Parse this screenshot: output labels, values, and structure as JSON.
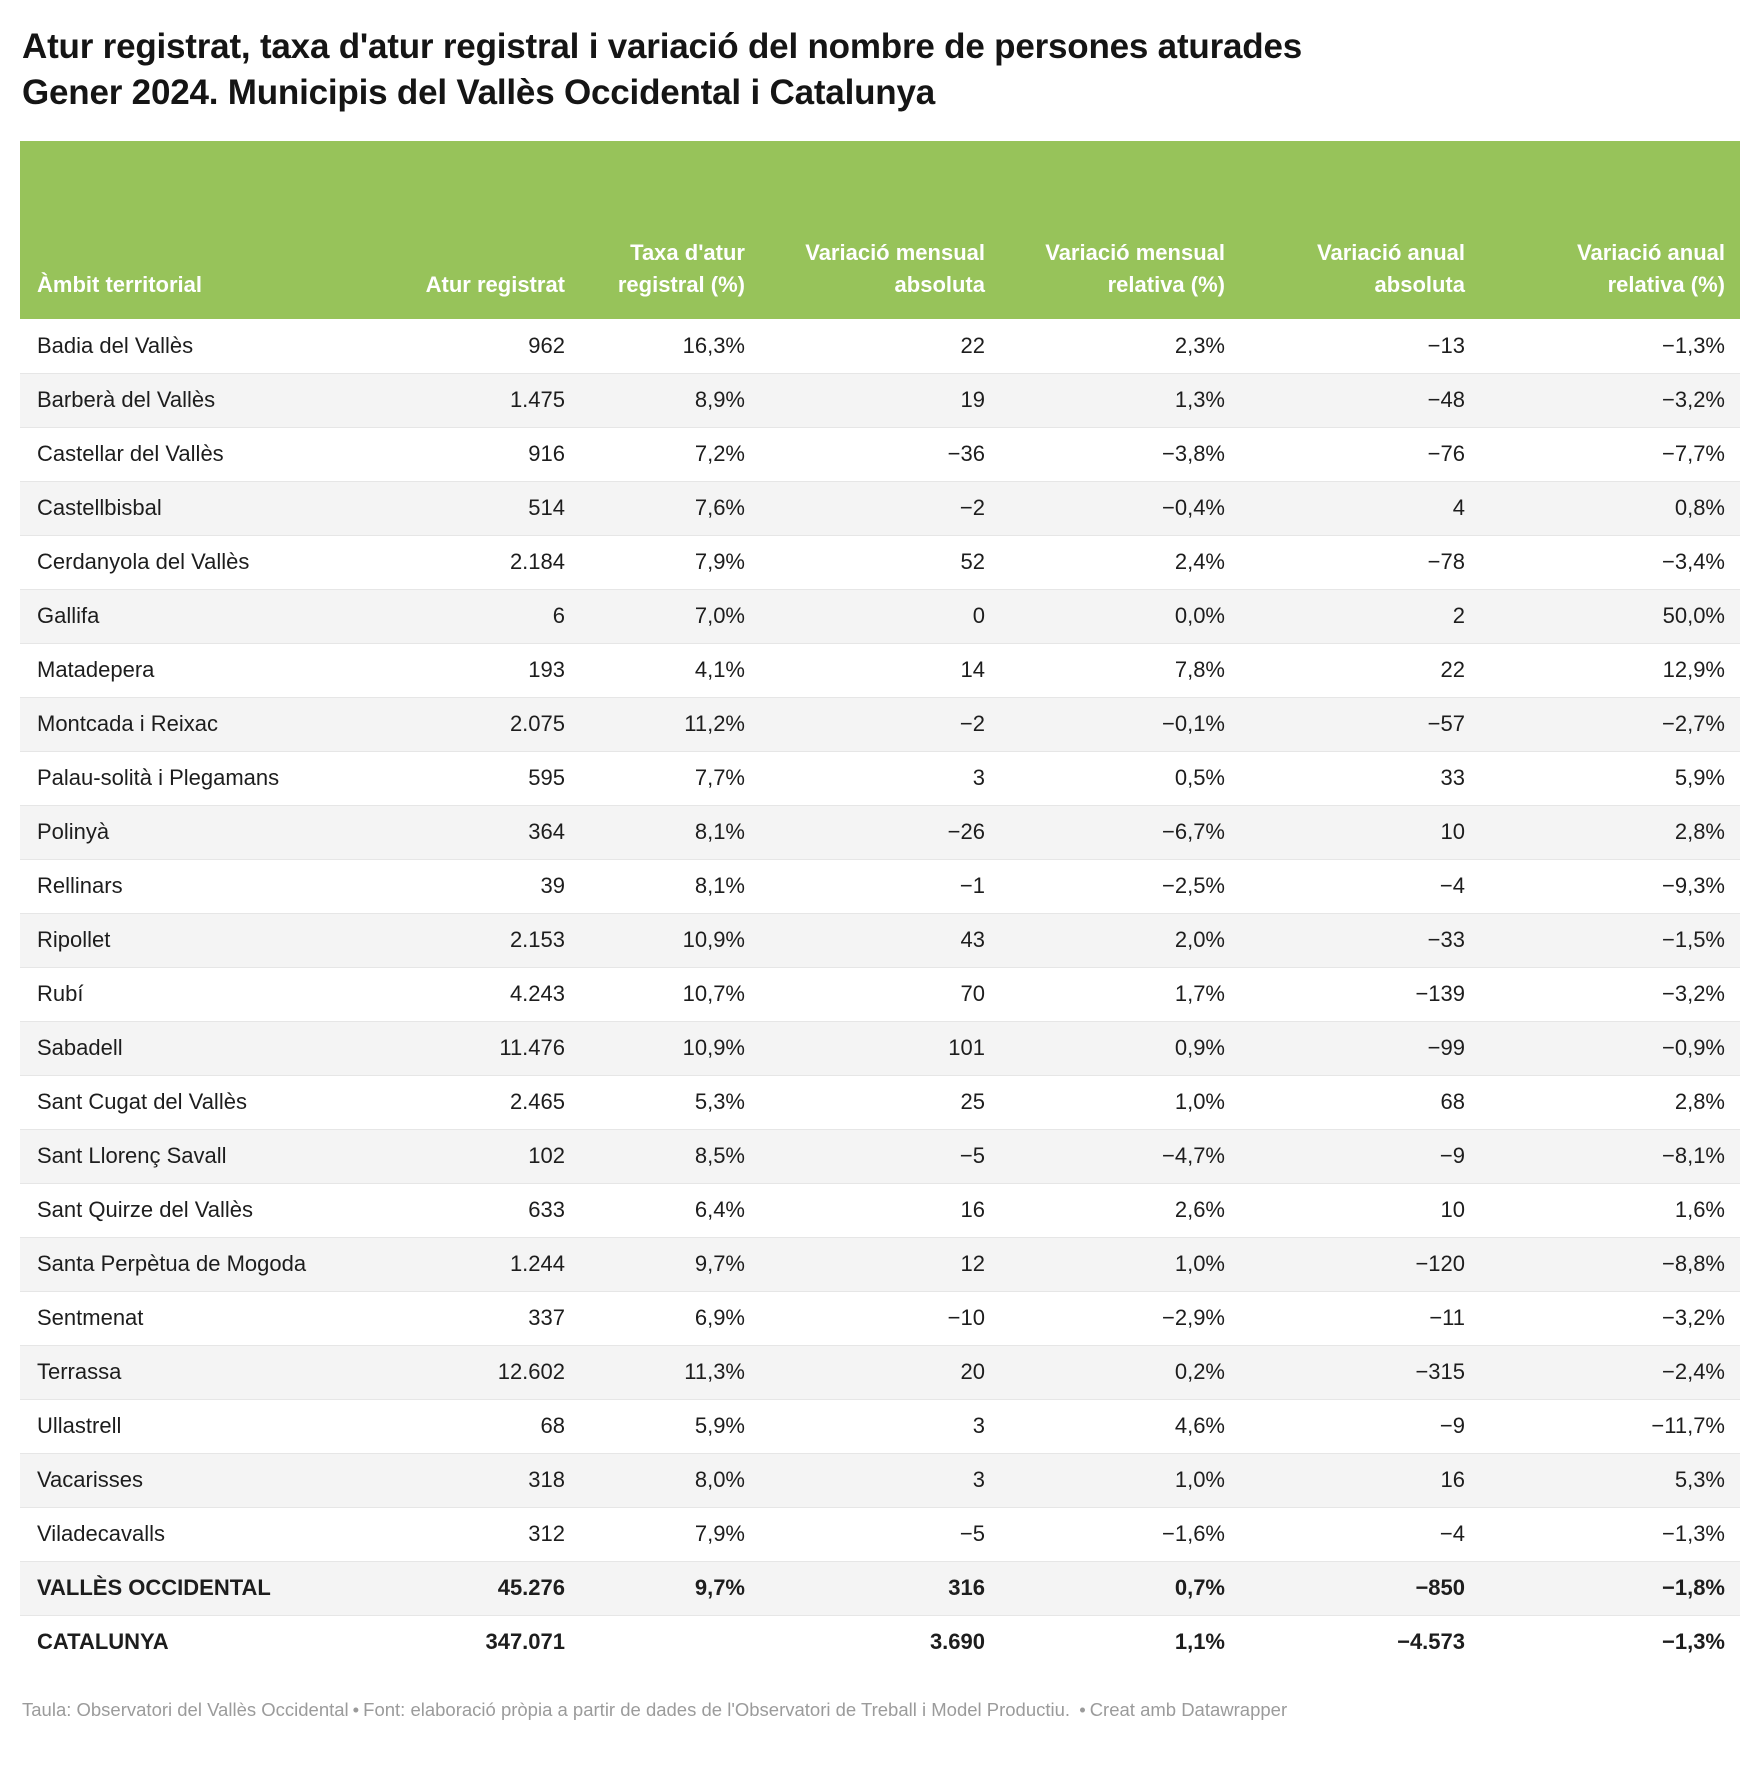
{
  "title": {
    "line1": "Atur registrat, taxa d'atur registral i variació del nombre de persones aturades",
    "line2": "Gener 2024. Municipis del Vallès Occidental i Catalunya"
  },
  "chart_data": {
    "type": "table",
    "title": "Atur registrat, taxa d'atur registral i variació del nombre de persones aturades. Gener 2024. Municipis del Vallès Occidental i Catalunya",
    "columns": [
      "Àmbit territorial",
      "Atur registrat",
      "Taxa d'atur registral (%)",
      "Variació mensual absoluta",
      "Variació mensual relativa (%)",
      "Variació anual absoluta",
      "Variació anual relativa (%)"
    ],
    "rows": [
      [
        "Badia del Vallès",
        "962",
        "16,3%",
        "22",
        "2,3%",
        "−13",
        "−1,3%"
      ],
      [
        "Barberà del Vallès",
        "1.475",
        "8,9%",
        "19",
        "1,3%",
        "−48",
        "−3,2%"
      ],
      [
        "Castellar del Vallès",
        "916",
        "7,2%",
        "−36",
        "−3,8%",
        "−76",
        "−7,7%"
      ],
      [
        "Castellbisbal",
        "514",
        "7,6%",
        "−2",
        "−0,4%",
        "4",
        "0,8%"
      ],
      [
        "Cerdanyola del Vallès",
        "2.184",
        "7,9%",
        "52",
        "2,4%",
        "−78",
        "−3,4%"
      ],
      [
        "Gallifa",
        "6",
        "7,0%",
        "0",
        "0,0%",
        "2",
        "50,0%"
      ],
      [
        "Matadepera",
        "193",
        "4,1%",
        "14",
        "7,8%",
        "22",
        "12,9%"
      ],
      [
        "Montcada i Reixac",
        "2.075",
        "11,2%",
        "−2",
        "−0,1%",
        "−57",
        "−2,7%"
      ],
      [
        "Palau-solità i Plegamans",
        "595",
        "7,7%",
        "3",
        "0,5%",
        "33",
        "5,9%"
      ],
      [
        "Polinyà",
        "364",
        "8,1%",
        "−26",
        "−6,7%",
        "10",
        "2,8%"
      ],
      [
        "Rellinars",
        "39",
        "8,1%",
        "−1",
        "−2,5%",
        "−4",
        "−9,3%"
      ],
      [
        "Ripollet",
        "2.153",
        "10,9%",
        "43",
        "2,0%",
        "−33",
        "−1,5%"
      ],
      [
        "Rubí",
        "4.243",
        "10,7%",
        "70",
        "1,7%",
        "−139",
        "−3,2%"
      ],
      [
        "Sabadell",
        "11.476",
        "10,9%",
        "101",
        "0,9%",
        "−99",
        "−0,9%"
      ],
      [
        "Sant Cugat del Vallès",
        "2.465",
        "5,3%",
        "25",
        "1,0%",
        "68",
        "2,8%"
      ],
      [
        "Sant Llorenç Savall",
        "102",
        "8,5%",
        "−5",
        "−4,7%",
        "−9",
        "−8,1%"
      ],
      [
        "Sant Quirze del Vallès",
        "633",
        "6,4%",
        "16",
        "2,6%",
        "10",
        "1,6%"
      ],
      [
        "Santa Perpètua de Mogoda",
        "1.244",
        "9,7%",
        "12",
        "1,0%",
        "−120",
        "−8,8%"
      ],
      [
        "Sentmenat",
        "337",
        "6,9%",
        "−10",
        "−2,9%",
        "−11",
        "−3,2%"
      ],
      [
        "Terrassa",
        "12.602",
        "11,3%",
        "20",
        "0,2%",
        "−315",
        "−2,4%"
      ],
      [
        "Ullastrell",
        "68",
        "5,9%",
        "3",
        "4,6%",
        "−9",
        "−11,7%"
      ],
      [
        "Vacarisses",
        "318",
        "8,0%",
        "3",
        "1,0%",
        "16",
        "5,3%"
      ],
      [
        "Viladecavalls",
        "312",
        "7,9%",
        "−5",
        "−1,6%",
        "−4",
        "−1,3%"
      ]
    ],
    "totals": [
      [
        "VALLÈS OCCIDENTAL",
        "45.276",
        "9,7%",
        "316",
        "0,7%",
        "−850",
        "−1,8%"
      ],
      [
        "CATALUNYA",
        "347.071",
        "",
        "3.690",
        "1,1%",
        "−4.573",
        "−1,3%"
      ]
    ],
    "layout_hints": {
      "header_align": "right, first column left",
      "cell_align": "right, first column left",
      "striped": true
    }
  },
  "footer": {
    "table_credit": "Taula: Observatori del Vallès Occidental",
    "separator": "•",
    "source": "Font: elaboració pròpia a partir de dades de l'Observatori de Treball i Model Productiu.",
    "created_with": "Creat amb Datawrapper"
  },
  "colors": {
    "header_bg": "#97c35a",
    "header_text": "#ffffff",
    "stripe": "#f4f4f4",
    "border": "#e6e6e6",
    "text": "#1d1d1d",
    "footer_text": "#9b9b9b"
  }
}
